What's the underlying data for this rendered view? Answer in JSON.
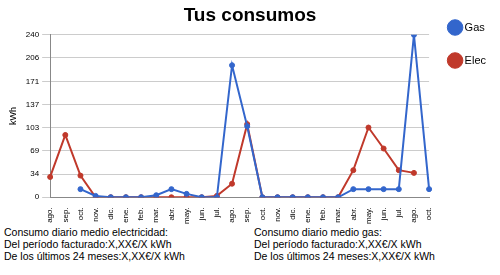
{
  "chart_data": {
    "type": "line",
    "title": "Tus consumos",
    "y_label": "kWh",
    "categories": [
      "ago.",
      "sep.",
      "oct.",
      "nov.",
      "dic.",
      "ene.",
      "feb.",
      "mar.",
      "abr.",
      "may.",
      "jun.",
      "jul.",
      "ago.",
      "sep.",
      "oct.",
      "nov.",
      "dic.",
      "ene.",
      "feb.",
      "mar.",
      "abr.",
      "may.",
      "jun.",
      "jul.",
      "ago.",
      "oct."
    ],
    "series": [
      {
        "name": "Gas",
        "color": "#3366cc",
        "marker": "circle",
        "values": [
          null,
          null,
          12,
          2,
          0,
          0,
          0,
          3,
          12,
          5,
          0,
          0,
          195,
          105,
          0,
          0,
          0,
          0,
          0,
          0,
          12,
          12,
          12,
          12,
          240,
          12
        ]
      },
      {
        "name": "Elec",
        "color": "#c0392b",
        "marker": "circle",
        "values": [
          30,
          92,
          32,
          0,
          0,
          0,
          0,
          0,
          0,
          0,
          0,
          2,
          20,
          108,
          0,
          0,
          0,
          0,
          0,
          0,
          40,
          103,
          72,
          40,
          36,
          null
        ]
      }
    ],
    "ylim": [
      0,
      240
    ],
    "yticks": [
      0,
      34,
      69,
      103,
      137,
      171,
      206,
      240
    ],
    "grid": true,
    "legend": "right",
    "annotations": [
      [
        "Consumo diario medio electricidad:",
        "Del período facturado:X,XX€/X kWh",
        "De los últimos 24 meses:X,XX€/X kWh"
      ],
      [
        "Consumo diario medio gas:",
        "Del período facturado:X,XX€/X kWh",
        "De los últimos 24 meses:X,XX€/X kWh"
      ]
    ]
  }
}
